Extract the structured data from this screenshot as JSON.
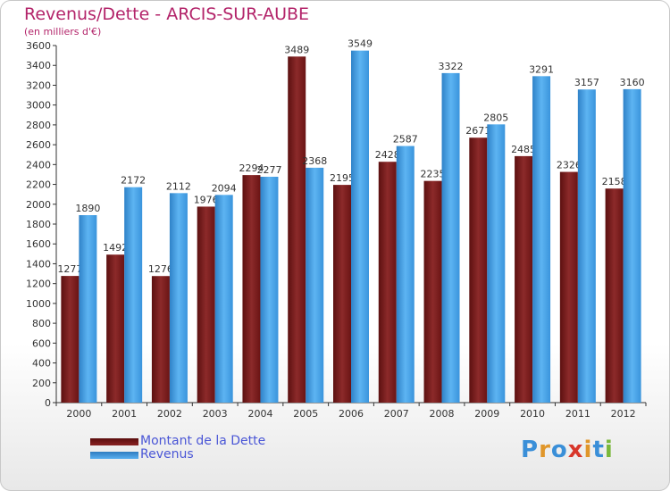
{
  "chart_data": {
    "type": "bar",
    "title": "Revenus/Dette - ARCIS-SUR-AUBE",
    "subtitle": "(en milliers d'€)",
    "categories": [
      "2000",
      "2001",
      "2002",
      "2003",
      "2004",
      "2005",
      "2006",
      "2007",
      "2008",
      "2009",
      "2010",
      "2011",
      "2012"
    ],
    "series": [
      {
        "name": "Montant de la Dette",
        "color": "#7a1a1a",
        "values": [
          1277,
          1492,
          1276,
          1976,
          2294,
          3489,
          2195,
          2428,
          2235,
          2671,
          2485,
          2326,
          2158
        ]
      },
      {
        "name": "Revenus",
        "color": "#3d9ae0",
        "values": [
          1890,
          2172,
          2112,
          2094,
          2277,
          2368,
          3549,
          2587,
          3322,
          2805,
          3291,
          3157,
          3160
        ]
      }
    ],
    "value_labels": {
      "Montant de la Dette": [
        "1277",
        "1492",
        "1276",
        "1976",
        "2294",
        "3489",
        "2195",
        "2428",
        "2235",
        "2671",
        "2485",
        "2326",
        "2158"
      ],
      "Revenus": [
        "1890",
        "2172",
        "2112",
        "2094",
        "2277",
        "2368",
        "3549",
        "2587",
        "3322",
        "2805",
        "3291",
        "3157",
        "3160"
      ]
    },
    "ylim": [
      0,
      3600
    ],
    "yticks": [
      0,
      200,
      400,
      600,
      800,
      1000,
      1200,
      1400,
      1600,
      1800,
      2000,
      2200,
      2400,
      2600,
      2800,
      3000,
      3200,
      3400,
      3600
    ],
    "grid": false,
    "legend": "bottom-left"
  },
  "branding": {
    "logo_letters": [
      "P",
      "r",
      "o",
      "x",
      "i",
      "t",
      "i"
    ],
    "logo_colors": [
      "#3a8fd8",
      "#e0962a",
      "#3a8fd8",
      "#d8362a",
      "#e0962a",
      "#3a8fd8",
      "#7ab83a"
    ]
  }
}
